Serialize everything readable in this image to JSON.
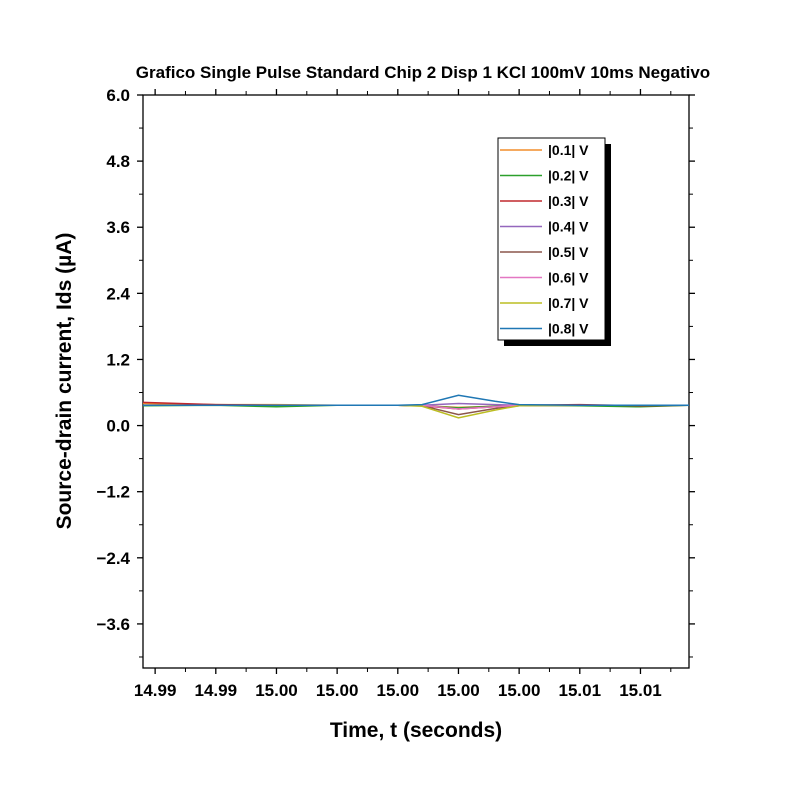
{
  "chart_data": {
    "type": "line",
    "title": "Grafico Single Pulse Standard Chip 2 Disp 1 KCl 100mV 10ms Negativo",
    "xlabel": "Time, t (seconds)",
    "ylabel": "Source-drain current, Ids (µA)",
    "x_tick_labels": [
      "14.99",
      "14.99",
      "15.00",
      "15.00",
      "15.00",
      "15.00",
      "15.00",
      "15.01",
      "15.01"
    ],
    "y_ticks": [
      6.0,
      4.8,
      3.6,
      2.4,
      1.2,
      0.0,
      -1.2,
      -2.4,
      -3.6
    ],
    "y_tick_labels": [
      "6.0",
      "4.8",
      "3.6",
      "2.4",
      "1.2",
      "0.0",
      "−1.2",
      "−2.4",
      "−3.6"
    ],
    "ylim": [
      -4.4,
      6.0
    ],
    "x_range_ticks": [
      -0.2,
      8.8
    ],
    "grid": false,
    "legend_position": "top-right",
    "x_tick_positions": [
      0,
      1,
      2,
      3,
      4,
      5,
      6,
      7,
      8
    ],
    "series": [
      {
        "name": "|0.1| V",
        "color": "#f28e2b",
        "x": [
          -0.2,
          1,
          2,
          3,
          4,
          4.4,
          5,
          5.6,
          6,
          7,
          8,
          8.8
        ],
        "y": [
          0.4,
          0.38,
          0.38,
          0.37,
          0.37,
          0.36,
          0.33,
          0.35,
          0.37,
          0.37,
          0.36,
          0.37
        ]
      },
      {
        "name": "|0.2| V",
        "color": "#2ca02c",
        "x": [
          -0.2,
          1,
          2,
          3,
          4,
          4.4,
          5,
          5.6,
          6,
          7,
          8,
          8.8
        ],
        "y": [
          0.36,
          0.37,
          0.34,
          0.37,
          0.37,
          0.36,
          0.32,
          0.35,
          0.37,
          0.36,
          0.34,
          0.37
        ]
      },
      {
        "name": "|0.3| V",
        "color": "#c0282d",
        "x": [
          -0.2,
          1,
          2,
          3,
          4,
          4.4,
          5,
          5.6,
          6,
          7,
          8,
          8.8
        ],
        "y": [
          0.42,
          0.38,
          0.37,
          0.37,
          0.37,
          0.36,
          0.3,
          0.34,
          0.37,
          0.38,
          0.36,
          0.37
        ]
      },
      {
        "name": "|0.4| V",
        "color": "#9467bd",
        "x": [
          -0.2,
          1,
          2,
          3,
          4,
          4.4,
          5,
          5.6,
          6,
          7,
          8,
          8.8
        ],
        "y": [
          0.37,
          0.37,
          0.37,
          0.37,
          0.37,
          0.37,
          0.4,
          0.38,
          0.37,
          0.37,
          0.37,
          0.37
        ]
      },
      {
        "name": "|0.5| V",
        "color": "#8c564b",
        "x": [
          -0.2,
          1,
          2,
          3,
          4,
          4.4,
          5,
          5.6,
          6,
          7,
          8,
          8.8
        ],
        "y": [
          0.37,
          0.37,
          0.37,
          0.37,
          0.37,
          0.36,
          0.2,
          0.31,
          0.36,
          0.37,
          0.37,
          0.37
        ]
      },
      {
        "name": "|0.6| V",
        "color": "#e377c2",
        "x": [
          -0.2,
          1,
          2,
          3,
          4,
          4.4,
          5,
          5.6,
          6,
          7,
          8,
          8.8
        ],
        "y": [
          0.37,
          0.37,
          0.37,
          0.37,
          0.37,
          0.37,
          0.3,
          0.34,
          0.37,
          0.37,
          0.37,
          0.37
        ]
      },
      {
        "name": "|0.7| V",
        "color": "#bcbd22",
        "x": [
          -0.2,
          1,
          2,
          3,
          4,
          4.4,
          5,
          5.6,
          6,
          7,
          8,
          8.8
        ],
        "y": [
          0.37,
          0.37,
          0.37,
          0.37,
          0.37,
          0.35,
          0.14,
          0.28,
          0.36,
          0.37,
          0.37,
          0.37
        ]
      },
      {
        "name": "|0.8| V",
        "color": "#1f77b4",
        "x": [
          -0.2,
          1,
          2,
          3,
          4,
          4.4,
          5,
          5.6,
          6,
          7,
          8,
          8.8
        ],
        "y": [
          0.37,
          0.37,
          0.37,
          0.37,
          0.37,
          0.38,
          0.55,
          0.44,
          0.38,
          0.37,
          0.37,
          0.37
        ]
      }
    ]
  }
}
